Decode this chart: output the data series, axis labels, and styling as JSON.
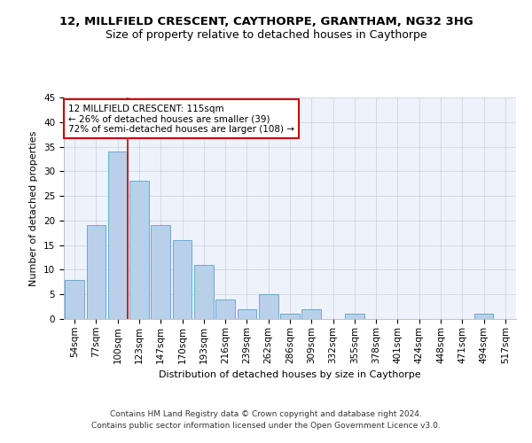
{
  "title": "12, MILLFIELD CRESCENT, CAYTHORPE, GRANTHAM, NG32 3HG",
  "subtitle": "Size of property relative to detached houses in Caythorpe",
  "xlabel": "Distribution of detached houses by size in Caythorpe",
  "ylabel": "Number of detached properties",
  "bar_color": "#b8d0ea",
  "bar_edge_color": "#6aaad4",
  "background_color": "#eef2fb",
  "grid_color": "#c8cfe0",
  "categories": [
    "54sqm",
    "77sqm",
    "100sqm",
    "123sqm",
    "147sqm",
    "170sqm",
    "193sqm",
    "216sqm",
    "239sqm",
    "262sqm",
    "286sqm",
    "309sqm",
    "332sqm",
    "355sqm",
    "378sqm",
    "401sqm",
    "424sqm",
    "448sqm",
    "471sqm",
    "494sqm",
    "517sqm"
  ],
  "values": [
    8,
    19,
    34,
    28,
    19,
    16,
    11,
    4,
    2,
    5,
    1,
    2,
    0,
    1,
    0,
    0,
    0,
    0,
    0,
    1,
    0
  ],
  "ylim": [
    0,
    45
  ],
  "yticks": [
    0,
    5,
    10,
    15,
    20,
    25,
    30,
    35,
    40,
    45
  ],
  "property_line_color": "#cc0000",
  "annotation_box_color": "#cc0000",
  "annotation_box_fill": "#ffffff",
  "annotation_line1": "12 MILLFIELD CRESCENT: 115sqm",
  "annotation_line2": "← 26% of detached houses are smaller (39)",
  "annotation_line3": "72% of semi-detached houses are larger (108) →",
  "footer_line1": "Contains HM Land Registry data © Crown copyright and database right 2024.",
  "footer_line2": "Contains public sector information licensed under the Open Government Licence v3.0.",
  "title_fontsize": 9.5,
  "subtitle_fontsize": 9,
  "axis_label_fontsize": 8,
  "tick_fontsize": 7.5,
  "annotation_fontsize": 7.5,
  "footer_fontsize": 6.5
}
